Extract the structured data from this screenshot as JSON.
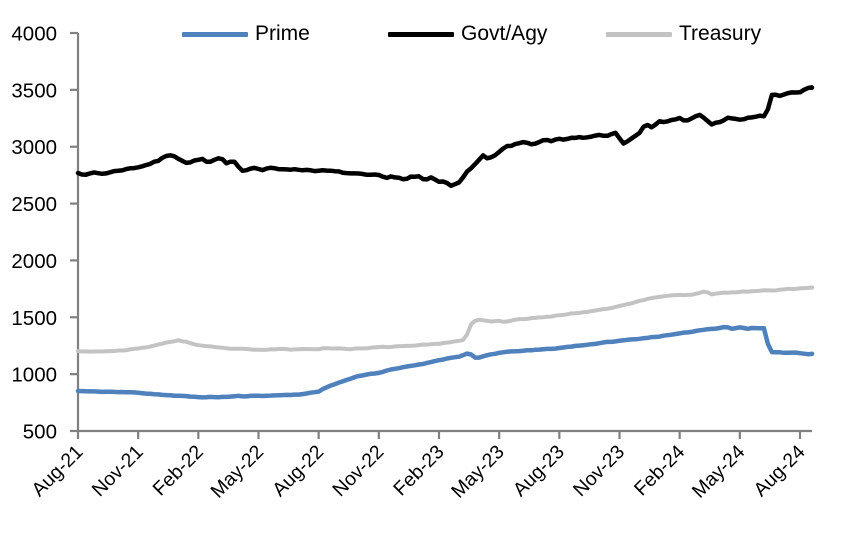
{
  "chart_data": {
    "type": "line",
    "title": "",
    "xlabel": "",
    "ylabel": "",
    "grid": "off",
    "legend": {
      "position": "top",
      "entries": [
        "Prime",
        "Govt/Agy",
        "Treasury"
      ]
    },
    "y_axis": {
      "range": [
        500,
        4000
      ],
      "ticks": [
        500,
        1000,
        1500,
        2000,
        2500,
        3000,
        3500,
        4000
      ],
      "tick_labels": [
        "500",
        "1000",
        "1500",
        "2000",
        "2500",
        "3000",
        "3500",
        "4000"
      ]
    },
    "x_axis": {
      "tick_labels": [
        "Aug-21",
        "Nov-21",
        "Feb-22",
        "May-22",
        "Aug-22",
        "Nov-22",
        "Feb-23",
        "May-23",
        "Aug-23",
        "Nov-23",
        "Feb-24",
        "May-24",
        "Aug-24"
      ],
      "tick_positions_months": [
        0,
        3,
        6,
        9,
        12,
        15,
        18,
        21,
        24,
        27,
        30,
        33,
        36
      ],
      "range_months": [
        0,
        36.6
      ],
      "label_rotation_deg": -45
    },
    "series": [
      {
        "name": "Prime",
        "color": "#4f81bd",
        "line_width": 4.5,
        "jitter": 2.5,
        "points": [
          [
            0,
            852
          ],
          [
            0.5,
            848
          ],
          [
            1,
            845
          ],
          [
            1.5,
            846
          ],
          [
            2,
            842
          ],
          [
            2.5,
            840
          ],
          [
            3,
            837
          ],
          [
            3.5,
            830
          ],
          [
            4,
            822
          ],
          [
            4.5,
            815
          ],
          [
            5,
            808
          ],
          [
            5.5,
            803
          ],
          [
            6,
            799
          ],
          [
            6.5,
            797
          ],
          [
            7,
            798
          ],
          [
            7.5,
            801
          ],
          [
            8,
            808
          ],
          [
            8.4,
            803
          ],
          [
            9,
            812
          ],
          [
            9.5,
            810
          ],
          [
            10,
            815
          ],
          [
            10.5,
            817
          ],
          [
            11,
            822
          ],
          [
            11.5,
            832
          ],
          [
            12,
            846
          ],
          [
            12.3,
            880
          ],
          [
            13,
            925
          ],
          [
            13.5,
            955
          ],
          [
            14,
            985
          ],
          [
            14.5,
            1000
          ],
          [
            15,
            1012
          ],
          [
            15.5,
            1035
          ],
          [
            16,
            1052
          ],
          [
            16.3,
            1062
          ],
          [
            17,
            1085
          ],
          [
            17.5,
            1102
          ],
          [
            18,
            1125
          ],
          [
            18.4,
            1138
          ],
          [
            19,
            1155
          ],
          [
            19.4,
            1180
          ],
          [
            19.65,
            1168
          ],
          [
            19.85,
            1133
          ],
          [
            20.1,
            1150
          ],
          [
            20.5,
            1170
          ],
          [
            21,
            1188
          ],
          [
            21.5,
            1196
          ],
          [
            22,
            1205
          ],
          [
            22.5,
            1208
          ],
          [
            23,
            1215
          ],
          [
            23.5,
            1222
          ],
          [
            24,
            1230
          ],
          [
            24.5,
            1241
          ],
          [
            25,
            1252
          ],
          [
            25.5,
            1262
          ],
          [
            26,
            1272
          ],
          [
            26.5,
            1283
          ],
          [
            27,
            1293
          ],
          [
            27.5,
            1302
          ],
          [
            28,
            1312
          ],
          [
            28.5,
            1323
          ],
          [
            29,
            1333
          ],
          [
            29.5,
            1343
          ],
          [
            30,
            1355
          ],
          [
            30.5,
            1370
          ],
          [
            31,
            1386
          ],
          [
            31.5,
            1398
          ],
          [
            32,
            1408
          ],
          [
            32.3,
            1420
          ],
          [
            32.6,
            1398
          ],
          [
            33,
            1412
          ],
          [
            33.4,
            1399
          ],
          [
            33.7,
            1406
          ],
          [
            34,
            1403
          ],
          [
            34.3,
            1406
          ],
          [
            34.45,
            1196
          ],
          [
            34.8,
            1192
          ],
          [
            35.2,
            1190
          ],
          [
            35.6,
            1193
          ],
          [
            36,
            1186
          ],
          [
            36.3,
            1176
          ],
          [
            36.6,
            1178
          ]
        ]
      },
      {
        "name": "Govt/Agy",
        "color": "#000000",
        "line_width": 4.5,
        "jitter": 6,
        "points": [
          [
            0,
            2775
          ],
          [
            0.4,
            2752
          ],
          [
            0.8,
            2772
          ],
          [
            1.2,
            2762
          ],
          [
            1.6,
            2776
          ],
          [
            2,
            2790
          ],
          [
            2.5,
            2806
          ],
          [
            3,
            2822
          ],
          [
            3.5,
            2846
          ],
          [
            4,
            2876
          ],
          [
            4.4,
            2920
          ],
          [
            4.7,
            2934
          ],
          [
            5,
            2900
          ],
          [
            5.4,
            2856
          ],
          [
            5.8,
            2876
          ],
          [
            6.2,
            2890
          ],
          [
            6.5,
            2852
          ],
          [
            6.8,
            2880
          ],
          [
            7.1,
            2896
          ],
          [
            7.4,
            2856
          ],
          [
            7.7,
            2882
          ],
          [
            7.9,
            2862
          ],
          [
            8.1,
            2792
          ],
          [
            8.4,
            2802
          ],
          [
            8.8,
            2816
          ],
          [
            9.2,
            2796
          ],
          [
            9.6,
            2810
          ],
          [
            10,
            2802
          ],
          [
            10.5,
            2806
          ],
          [
            11,
            2798
          ],
          [
            11.5,
            2796
          ],
          [
            12,
            2790
          ],
          [
            12.5,
            2786
          ],
          [
            13,
            2776
          ],
          [
            13.5,
            2766
          ],
          [
            14,
            2756
          ],
          [
            14.5,
            2746
          ],
          [
            15,
            2746
          ],
          [
            15.3,
            2722
          ],
          [
            15.6,
            2740
          ],
          [
            16,
            2726
          ],
          [
            16.3,
            2706
          ],
          [
            16.6,
            2730
          ],
          [
            17,
            2734
          ],
          [
            17.3,
            2702
          ],
          [
            17.6,
            2726
          ],
          [
            18,
            2692
          ],
          [
            18.3,
            2700
          ],
          [
            18.6,
            2666
          ],
          [
            18.9,
            2672
          ],
          [
            19.1,
            2692
          ],
          [
            19.35,
            2780
          ],
          [
            19.6,
            2812
          ],
          [
            19.8,
            2846
          ],
          [
            20,
            2882
          ],
          [
            20.2,
            2916
          ],
          [
            20.45,
            2892
          ],
          [
            20.7,
            2906
          ],
          [
            21,
            2948
          ],
          [
            21.3,
            2996
          ],
          [
            21.6,
            3008
          ],
          [
            22,
            3028
          ],
          [
            22.3,
            3044
          ],
          [
            22.6,
            3024
          ],
          [
            23,
            3040
          ],
          [
            23.3,
            3058
          ],
          [
            23.6,
            3044
          ],
          [
            24,
            3064
          ],
          [
            24.3,
            3054
          ],
          [
            24.6,
            3074
          ],
          [
            25,
            3084
          ],
          [
            25.3,
            3070
          ],
          [
            25.6,
            3090
          ],
          [
            26,
            3104
          ],
          [
            26.3,
            3092
          ],
          [
            26.6,
            3116
          ],
          [
            26.9,
            3130
          ],
          [
            27.1,
            3022
          ],
          [
            27.4,
            3056
          ],
          [
            27.7,
            3092
          ],
          [
            28,
            3132
          ],
          [
            28.3,
            3198
          ],
          [
            28.55,
            3166
          ],
          [
            29,
            3228
          ],
          [
            29.3,
            3214
          ],
          [
            29.6,
            3236
          ],
          [
            30,
            3250
          ],
          [
            30.3,
            3216
          ],
          [
            30.6,
            3246
          ],
          [
            31,
            3278
          ],
          [
            31.3,
            3242
          ],
          [
            31.6,
            3196
          ],
          [
            32,
            3220
          ],
          [
            32.4,
            3254
          ],
          [
            32.7,
            3240
          ],
          [
            33,
            3236
          ],
          [
            33.4,
            3250
          ],
          [
            33.7,
            3262
          ],
          [
            34,
            3274
          ],
          [
            34.2,
            3264
          ],
          [
            34.35,
            3272
          ],
          [
            34.5,
            3444
          ],
          [
            34.7,
            3456
          ],
          [
            35,
            3446
          ],
          [
            35.3,
            3468
          ],
          [
            35.6,
            3480
          ],
          [
            35.9,
            3470
          ],
          [
            36.1,
            3482
          ],
          [
            36.3,
            3504
          ],
          [
            36.6,
            3518
          ]
        ]
      },
      {
        "name": "Treasury",
        "color": "#c3c3c3",
        "line_width": 4,
        "jitter": 3,
        "points": [
          [
            0,
            1205
          ],
          [
            0.5,
            1200
          ],
          [
            1,
            1202
          ],
          [
            1.5,
            1199
          ],
          [
            2,
            1207
          ],
          [
            2.5,
            1214
          ],
          [
            3,
            1224
          ],
          [
            3.5,
            1240
          ],
          [
            4,
            1258
          ],
          [
            4.5,
            1281
          ],
          [
            5,
            1298
          ],
          [
            5.4,
            1284
          ],
          [
            6,
            1252
          ],
          [
            6.5,
            1241
          ],
          [
            7,
            1232
          ],
          [
            7.5,
            1226
          ],
          [
            8,
            1221
          ],
          [
            8.5,
            1216
          ],
          [
            9,
            1212
          ],
          [
            9.5,
            1216
          ],
          [
            10,
            1221
          ],
          [
            10.5,
            1216
          ],
          [
            11,
            1219
          ],
          [
            11.5,
            1221
          ],
          [
            12,
            1223
          ],
          [
            12.2,
            1232
          ],
          [
            12.7,
            1228
          ],
          [
            13,
            1224
          ],
          [
            13.5,
            1221
          ],
          [
            14,
            1226
          ],
          [
            14.5,
            1230
          ],
          [
            15,
            1236
          ],
          [
            15.5,
            1240
          ],
          [
            16,
            1246
          ],
          [
            16.5,
            1250
          ],
          [
            17,
            1256
          ],
          [
            17.5,
            1262
          ],
          [
            18,
            1268
          ],
          [
            18.5,
            1278
          ],
          [
            19,
            1290
          ],
          [
            19.3,
            1300
          ],
          [
            19.5,
            1398
          ],
          [
            19.65,
            1462
          ],
          [
            20,
            1478
          ],
          [
            20.3,
            1470
          ],
          [
            20.6,
            1461
          ],
          [
            21,
            1468
          ],
          [
            21.3,
            1458
          ],
          [
            21.6,
            1471
          ],
          [
            22,
            1482
          ],
          [
            22.5,
            1490
          ],
          [
            23,
            1500
          ],
          [
            23.5,
            1509
          ],
          [
            24,
            1518
          ],
          [
            24.5,
            1529
          ],
          [
            25,
            1541
          ],
          [
            25.5,
            1553
          ],
          [
            26,
            1566
          ],
          [
            26.5,
            1582
          ],
          [
            27,
            1600
          ],
          [
            27.5,
            1620
          ],
          [
            28,
            1642
          ],
          [
            28.5,
            1664
          ],
          [
            29,
            1681
          ],
          [
            29.5,
            1692
          ],
          [
            30,
            1700
          ],
          [
            30.5,
            1696
          ],
          [
            31,
            1712
          ],
          [
            31.3,
            1729
          ],
          [
            31.6,
            1701
          ],
          [
            32,
            1711
          ],
          [
            32.5,
            1717
          ],
          [
            33,
            1722
          ],
          [
            33.5,
            1727
          ],
          [
            34,
            1732
          ],
          [
            34.5,
            1737
          ],
          [
            35,
            1742
          ],
          [
            35.5,
            1748
          ],
          [
            36,
            1754
          ],
          [
            36.3,
            1759
          ],
          [
            36.6,
            1764
          ]
        ]
      }
    ]
  },
  "colors": {
    "axis": "#808080",
    "tick_label": "#000000",
    "background": "#ffffff"
  }
}
